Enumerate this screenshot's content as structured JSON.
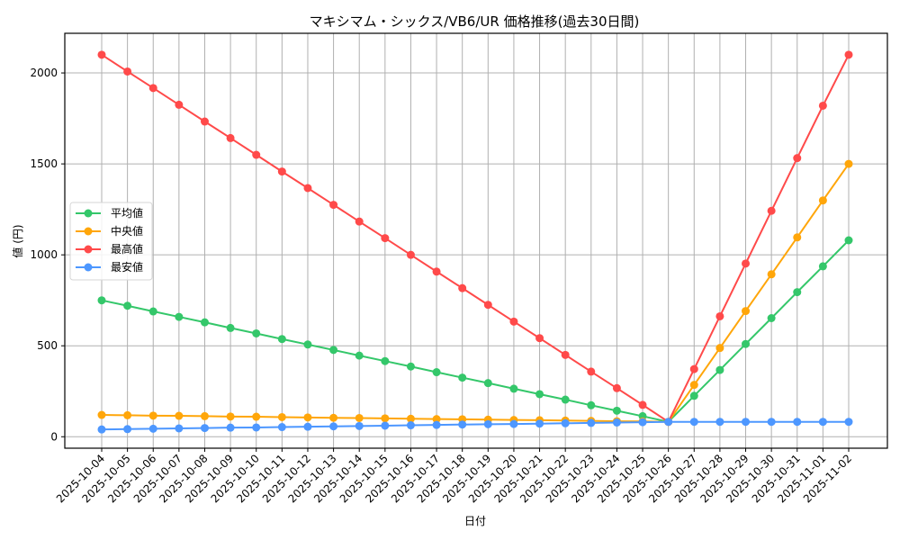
{
  "chart_data": {
    "type": "line",
    "title": "マキシマム・シックス/VB6/UR 価格推移(過去30日間)",
    "xlabel": "日付",
    "ylabel": "値 (円)",
    "ylim": [
      -63,
      2218
    ],
    "yticks": [
      0,
      500,
      1000,
      1500,
      2000
    ],
    "grid": true,
    "legend_position": "center left",
    "categories": [
      "2025-10-04",
      "2025-10-05",
      "2025-10-06",
      "2025-10-07",
      "2025-10-08",
      "2025-10-09",
      "2025-10-10",
      "2025-10-11",
      "2025-10-12",
      "2025-10-13",
      "2025-10-14",
      "2025-10-15",
      "2025-10-16",
      "2025-10-17",
      "2025-10-18",
      "2025-10-19",
      "2025-10-20",
      "2025-10-21",
      "2025-10-22",
      "2025-10-23",
      "2025-10-24",
      "2025-10-25",
      "2025-10-26",
      "2025-10-27",
      "2025-10-28",
      "2025-10-29",
      "2025-10-30",
      "2025-10-31",
      "2025-11-01",
      "2025-11-02"
    ],
    "series": [
      {
        "name": "平均値",
        "color": "#34c76a",
        "values": [
          750,
          720,
          689,
          659,
          629,
          598,
          568,
          537,
          507,
          477,
          446,
          416,
          386,
          355,
          325,
          295,
          264,
          234,
          204,
          173,
          143,
          113,
          82,
          225,
          367,
          510,
          652,
          795,
          937,
          1080
        ]
      },
      {
        "name": "中央値",
        "color": "#ffa60a",
        "values": [
          120,
          118,
          116,
          115,
          113,
          111,
          110,
          108,
          106,
          104,
          103,
          101,
          99,
          97,
          96,
          94,
          92,
          91,
          89,
          87,
          85,
          84,
          82,
          285,
          488,
          691,
          893,
          1096,
          1299,
          1500
        ]
      },
      {
        "name": "最高値",
        "color": "#ff4a4a",
        "values": [
          2100,
          2008,
          1917,
          1825,
          1733,
          1642,
          1550,
          1458,
          1367,
          1275,
          1183,
          1092,
          1000,
          908,
          817,
          725,
          633,
          542,
          450,
          358,
          267,
          175,
          82,
          372,
          662,
          952,
          1242,
          1532,
          1820,
          2100
        ]
      },
      {
        "name": "最安値",
        "color": "#4d97ff",
        "values": [
          40,
          42,
          44,
          46,
          48,
          50,
          51,
          53,
          55,
          57,
          59,
          61,
          63,
          65,
          67,
          69,
          70,
          72,
          74,
          76,
          78,
          80,
          82,
          82,
          82,
          82,
          82,
          82,
          82,
          82
        ]
      }
    ]
  }
}
